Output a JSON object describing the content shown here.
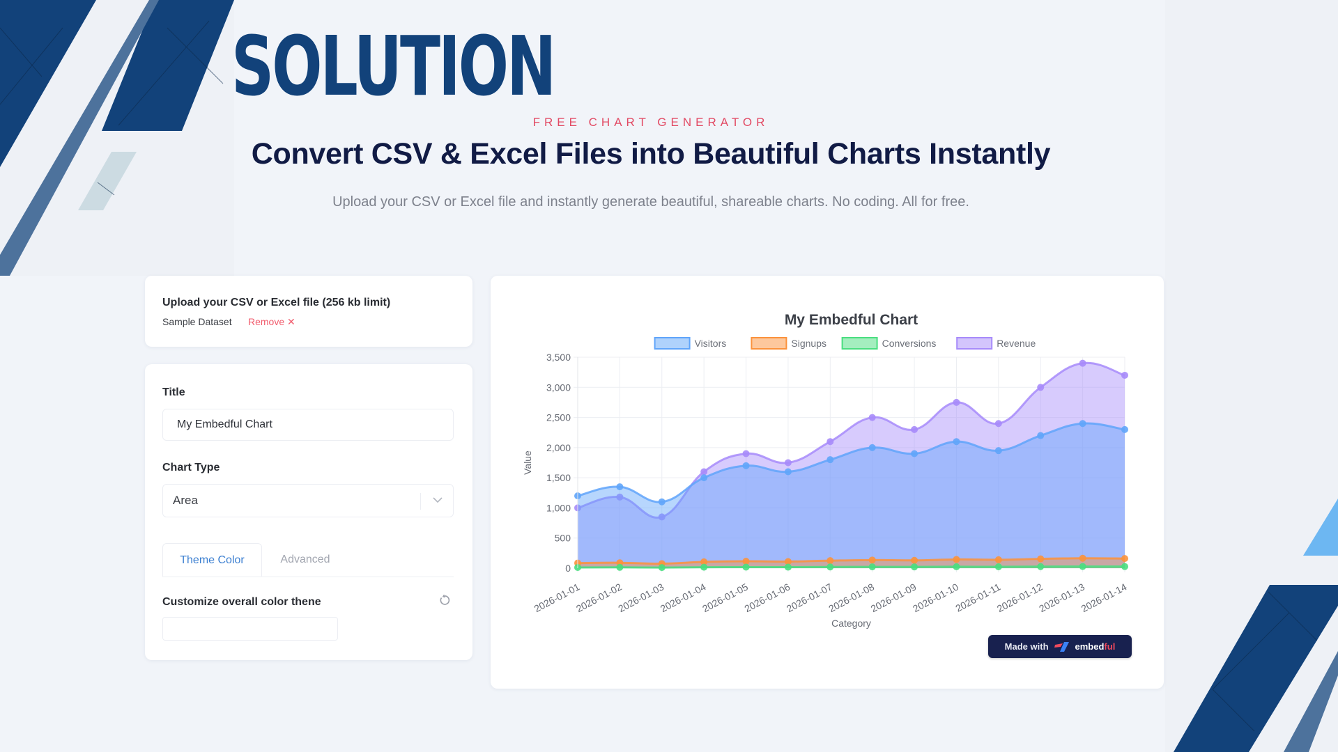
{
  "banner": {
    "title": "SOLUTION"
  },
  "hero": {
    "eyebrow": "FREE CHART GENERATOR",
    "headline": "Convert CSV & Excel Files into Beautiful Charts Instantly",
    "subline": "Upload your CSV or Excel file and instantly generate beautiful, shareable charts. No coding. All for free."
  },
  "upload": {
    "label": "Upload your CSV or Excel file (256 kb limit)",
    "file_name": "Sample Dataset",
    "remove_label": "Remove ✕"
  },
  "settings": {
    "title_label": "Title",
    "title_value": "My Embedful Chart",
    "chart_type_label": "Chart Type",
    "chart_type_value": "Area",
    "tabs": [
      {
        "label": "Theme Color",
        "active": true
      },
      {
        "label": "Advanced",
        "active": false
      }
    ],
    "theme_label": "Customize overall color thene",
    "theme_value": ""
  },
  "badge": {
    "made_with": "Made with",
    "brand_main": "embed",
    "brand_accent": "ful"
  },
  "colors": {
    "accent": "#3b7fd1",
    "danger": "#f15b6c",
    "brand_navy": "#12427a",
    "badge_bg": "#18214f"
  },
  "chart_data": {
    "type": "area",
    "title": "My Embedful Chart",
    "xlabel": "Category",
    "ylabel": "Value",
    "ylim": [
      0,
      3500
    ],
    "yticks": [
      0,
      500,
      1000,
      1500,
      2000,
      2500,
      3000,
      3500
    ],
    "grid": true,
    "legend_position": "top",
    "categories": [
      "2026-01-01",
      "2026-01-02",
      "2026-01-03",
      "2026-01-04",
      "2026-01-05",
      "2026-01-06",
      "2026-01-07",
      "2026-01-08",
      "2026-01-09",
      "2026-01-10",
      "2026-01-11",
      "2026-01-12",
      "2026-01-13",
      "2026-01-14"
    ],
    "series": [
      {
        "name": "Visitors",
        "color": "#60a5fa",
        "values": [
          1200,
          1350,
          1100,
          1500,
          1700,
          1600,
          1800,
          2000,
          1900,
          2100,
          1950,
          2200,
          2400,
          2300
        ]
      },
      {
        "name": "Signups",
        "color": "#fb923c",
        "values": [
          85,
          90,
          75,
          105,
          115,
          110,
          125,
          135,
          130,
          145,
          140,
          155,
          165,
          160
        ]
      },
      {
        "name": "Conversions",
        "color": "#4ade80",
        "values": [
          12,
          14,
          10,
          16,
          18,
          17,
          20,
          22,
          21,
          24,
          23,
          26,
          28,
          27
        ]
      },
      {
        "name": "Revenue",
        "color": "#a78bfa",
        "values": [
          1000,
          1180,
          850,
          1600,
          1900,
          1750,
          2100,
          2500,
          2300,
          2750,
          2400,
          3000,
          3400,
          3200
        ]
      }
    ]
  }
}
